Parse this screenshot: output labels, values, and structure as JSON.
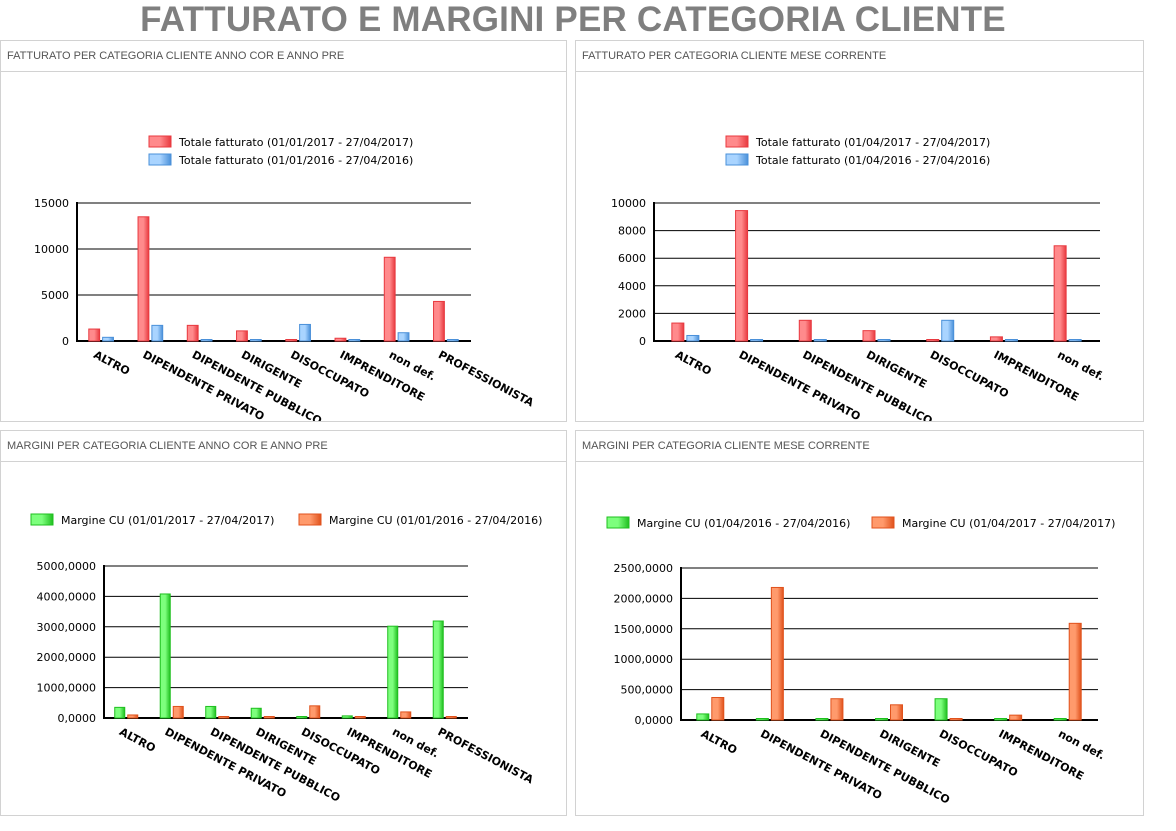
{
  "page": {
    "title": "FATTURATO E MARGINI PER CATEGORIA CLIENTE"
  },
  "panels": [
    {
      "header": "FATTURATO PER CATEGORIA CLIENTE ANNO COR E ANNO PRE"
    },
    {
      "header": "FATTURATO PER CATEGORIA CLIENTE MESE CORRENTE"
    },
    {
      "header": "MARGINI PER CATEGORIA CLIENTE ANNO COR E ANNO PRE"
    },
    {
      "header": "MARGINI PER CATEGORIA CLIENTE MESE CORRENTE"
    }
  ],
  "colors": {
    "red": "#e8393f",
    "red_light": "#ff8a8c",
    "blue": "#4a90d9",
    "blue_light": "#a9d4ff",
    "green": "#1fbf1f",
    "green_light": "#7dff7d",
    "orange": "#e0521c",
    "orange_light": "#ff9a6c"
  },
  "chart_data": [
    {
      "type": "bar",
      "categories": [
        "ALTRO",
        "DIPENDENTE PRIVATO",
        "DIPENDENTE PUBBLICO",
        "DIRIGENTE",
        "DISOCCUPATO",
        "IMPRENDITORE",
        "non def.",
        "PROFESSIONISTA"
      ],
      "series": [
        {
          "name": "Totale fatturato (01/01/2017 - 27/04/2017)",
          "color": "red",
          "values": [
            1300,
            13500,
            1700,
            1100,
            100,
            300,
            9100,
            4300
          ]
        },
        {
          "name": "Totale fatturato (01/01/2016 - 27/04/2016)",
          "color": "blue",
          "values": [
            400,
            1700,
            0,
            0,
            1800,
            100,
            900,
            0
          ]
        }
      ],
      "ylim": [
        0,
        15000
      ],
      "yticks": [
        "0",
        "5000",
        "10000",
        "15000"
      ],
      "legend": "top-center",
      "grid": true
    },
    {
      "type": "bar",
      "categories": [
        "ALTRO",
        "DIPENDENTE PRIVATO",
        "DIPENDENTE PUBBLICO",
        "DIRIGENTE",
        "DISOCCUPATO",
        "IMPRENDITORE",
        "non def."
      ],
      "series": [
        {
          "name": "Totale fatturato (01/04/2017 - 27/04/2017)",
          "color": "red",
          "values": [
            1300,
            9450,
            1500,
            750,
            100,
            300,
            6900
          ]
        },
        {
          "name": "Totale fatturato (01/04/2016 - 27/04/2016)",
          "color": "blue",
          "values": [
            400,
            0,
            0,
            0,
            1500,
            0,
            0
          ]
        }
      ],
      "ylim": [
        0,
        10000
      ],
      "yticks": [
        "0",
        "2000",
        "4000",
        "6000",
        "8000",
        "10000"
      ],
      "legend": "top-center",
      "grid": true
    },
    {
      "type": "bar",
      "categories": [
        "ALTRO",
        "DIPENDENTE PRIVATO",
        "DIPENDENTE PUBBLICO",
        "DIRIGENTE",
        "DISOCCUPATO",
        "IMPRENDITORE",
        "non def.",
        "PROFESSIONISTA"
      ],
      "series": [
        {
          "name": "Margine CU (01/01/2017 - 27/04/2017)",
          "color": "green",
          "values": [
            350,
            4080,
            380,
            320,
            30,
            70,
            3020,
            3190
          ]
        },
        {
          "name": "Margine CU (01/01/2016 - 27/04/2016)",
          "color": "orange",
          "values": [
            100,
            380,
            0,
            0,
            400,
            20,
            200,
            0
          ]
        }
      ],
      "ylim": [
        0,
        5000
      ],
      "yticks": [
        "0,0000",
        "1000,0000",
        "2000,0000",
        "3000,0000",
        "4000,0000",
        "5000,0000"
      ],
      "legend": "top-center",
      "grid": true
    },
    {
      "type": "bar",
      "categories": [
        "ALTRO",
        "DIPENDENTE PRIVATO",
        "DIPENDENTE PUBBLICO",
        "DIRIGENTE",
        "DISOCCUPATO",
        "IMPRENDITORE",
        "non def."
      ],
      "series": [
        {
          "name": "Margine CU (01/04/2016 - 27/04/2016)",
          "color": "green",
          "values": [
            100,
            0,
            0,
            0,
            350,
            0,
            0
          ]
        },
        {
          "name": "Margine CU (01/04/2017 - 27/04/2017)",
          "color": "orange",
          "values": [
            370,
            2180,
            350,
            250,
            20,
            80,
            1590
          ]
        }
      ],
      "ylim": [
        0,
        2500
      ],
      "yticks": [
        "0,0000",
        "500,0000",
        "1000,0000",
        "1500,0000",
        "2000,0000",
        "2500,0000"
      ],
      "legend": "top-center",
      "grid": true
    }
  ]
}
